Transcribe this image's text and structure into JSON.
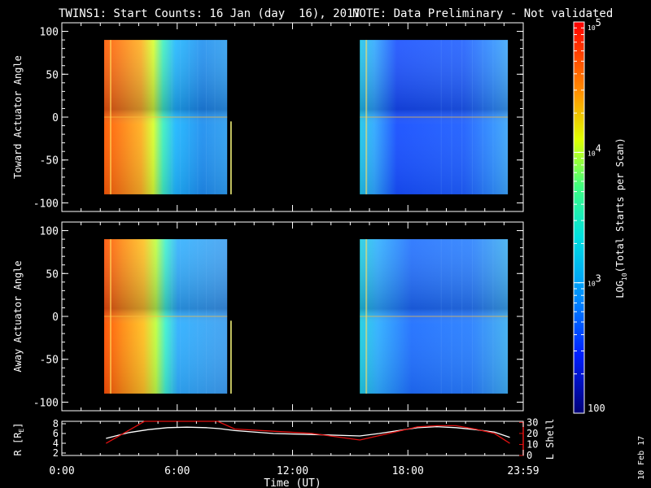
{
  "title": "TWINS1: Start Counts: 16 Jan (day  16), 2017",
  "note": "NOTE: Data Preliminary - Not validated",
  "date_stamp": "10 Feb 17",
  "colors": {
    "note": "#ff2020",
    "lshell": "#e01010",
    "r": "#ffffff"
  },
  "colorbar": {
    "label_prefix": "LOG",
    "label_sub": "10",
    "label_suffix": "(Total Starts per Scan)",
    "ticks": [
      {
        "base": "10",
        "exp": "5",
        "value": 100000
      },
      {
        "base": "10",
        "exp": "4",
        "value": 10000
      },
      {
        "base": "10",
        "exp": "3",
        "value": 1000
      },
      {
        "label": "100",
        "value": 100
      }
    ]
  },
  "chart_data": [
    {
      "type": "heatmap",
      "ylabel": "Toward Actuator Angle",
      "ylim": [
        -110,
        110
      ],
      "yticks": [
        -100,
        -50,
        0,
        50,
        100
      ],
      "xlim_hours": [
        0,
        24
      ],
      "data_blocks_hours": [
        [
          2.2,
          8.6
        ],
        [
          15.5,
          23.2
        ]
      ],
      "zscale": "log",
      "zlim": [
        100,
        100000
      ]
    },
    {
      "type": "heatmap",
      "ylabel": "Away Actuator Angle",
      "ylim": [
        -110,
        110
      ],
      "yticks": [
        -100,
        -50,
        0,
        50,
        100
      ],
      "xlim_hours": [
        0,
        24
      ],
      "data_blocks_hours": [
        [
          2.2,
          8.6
        ],
        [
          15.5,
          23.2
        ]
      ],
      "zscale": "log",
      "zlim": [
        100,
        100000
      ]
    },
    {
      "type": "line",
      "xlabel": "Time (UT)",
      "xticks": [
        "0:00",
        "6:00",
        "12:00",
        "18:00",
        "23:59"
      ],
      "xtick_hours": [
        0,
        6,
        12,
        18,
        24
      ],
      "ylabel_left": "R [R",
      "ylabel_left_sub": "E",
      "ylabel_left_end": "]",
      "ylim_left": [
        1.5,
        8.5
      ],
      "yticks_left": [
        2,
        4,
        6,
        8
      ],
      "ylabel_right": "L Shell",
      "ylim_right": [
        0,
        31
      ],
      "yticks_right": [
        0,
        10,
        20,
        30
      ],
      "series": [
        {
          "axis": "left",
          "color": "white",
          "x": [
            2.3,
            3.5,
            4.5,
            5.5,
            6.5,
            7.5,
            8.2,
            9.0,
            11.0,
            13.0,
            15.5,
            16.5,
            17.5,
            18.5,
            19.5,
            20.5,
            21.5,
            22.5,
            23.3
          ],
          "y": [
            5.0,
            6.2,
            6.8,
            7.2,
            7.3,
            7.2,
            7.0,
            6.6,
            6.0,
            5.8,
            5.5,
            6.0,
            6.6,
            7.2,
            7.4,
            7.2,
            6.8,
            6.3,
            5.2
          ]
        },
        {
          "axis": "right",
          "color": "red",
          "x": [
            2.3,
            3.2,
            4.3,
            8.1,
            9.0,
            11.0,
            13.0,
            15.5,
            16.5,
            17.5,
            18.5,
            19.5,
            20.5,
            21.5,
            22.5,
            23.3
          ],
          "y": [
            11,
            20,
            31,
            31,
            24,
            22,
            20,
            14,
            18,
            22,
            26,
            27,
            27,
            24,
            20,
            11
          ]
        }
      ]
    }
  ]
}
